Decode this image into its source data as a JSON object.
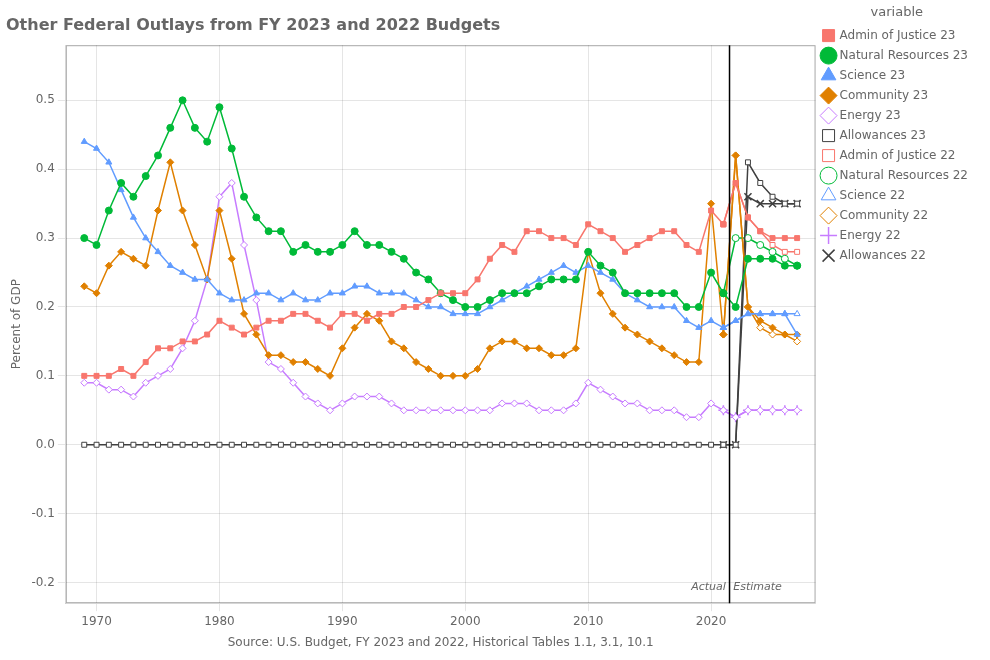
{
  "chart_data": {
    "type": "line",
    "title": "Other Federal Outlays from FY 2023 and 2022 Budgets",
    "xlabel": "Source: U.S. Budget, FY 2023 and 2022, Historical Tables 1.1, 3.1, 10.1",
    "ylabel": "Percent of GDP",
    "xlim": [
      1967.5,
      2028.5
    ],
    "ylim": [
      -0.23,
      0.58
    ],
    "xticks": [
      1970,
      1980,
      1990,
      2000,
      2010,
      2020
    ],
    "yticks": [
      -0.2,
      -0.1,
      {
        "value": 0,
        "label": "0.0"
      },
      0.1,
      0.2,
      0.3,
      0.4,
      0.5
    ],
    "grid": true,
    "legend": "right",
    "legend_title": "variable",
    "line_style": "solid",
    "vlines": [
      {
        "x": 2021.5
      }
    ],
    "annotations": [
      {
        "text": "Actual",
        "x": 2021.2,
        "y": -0.215
      },
      {
        "text": "Estimate",
        "x": 2021.8,
        "y": -0.215
      }
    ],
    "series": [
      {
        "name": "Admin of Justice 23",
        "color": "#F8766D",
        "marker": "square",
        "x": [
          1969,
          1970,
          1971,
          1972,
          1973,
          1974,
          1975,
          1976,
          1977,
          1978,
          1979,
          1980,
          1981,
          1982,
          1983,
          1984,
          1985,
          1986,
          1987,
          1988,
          1989,
          1990,
          1991,
          1992,
          1993,
          1994,
          1995,
          1996,
          1997,
          1998,
          1999,
          2000,
          2001,
          2002,
          2003,
          2004,
          2005,
          2006,
          2007,
          2008,
          2009,
          2010,
          2011,
          2012,
          2013,
          2014,
          2015,
          2016,
          2017,
          2018,
          2019,
          2020,
          2021,
          2021,
          2022,
          2023,
          2024,
          2025,
          2026,
          2027
        ],
        "values": [
          0.1,
          0.1,
          0.1,
          0.11,
          0.1,
          0.12,
          0.14,
          0.14,
          0.15,
          0.15,
          0.16,
          0.18,
          0.17,
          0.16,
          0.17,
          0.18,
          0.18,
          0.19,
          0.19,
          0.18,
          0.17,
          0.19,
          0.19,
          0.18,
          0.19,
          0.19,
          0.2,
          0.2,
          0.21,
          0.22,
          0.22,
          0.22,
          0.24,
          0.27,
          0.29,
          0.28,
          0.31,
          0.31,
          0.3,
          0.3,
          0.29,
          0.32,
          0.31,
          0.3,
          0.28,
          0.29,
          0.3,
          0.31,
          0.31,
          0.29,
          0.28,
          0.34,
          0.32,
          0.32,
          0.38,
          0.33,
          0.31,
          0.3,
          0.3,
          0.3
        ]
      },
      {
        "name": "Natural Resources 23",
        "color": "#00BA38",
        "marker": "circle",
        "x": [
          1969,
          1970,
          1971,
          1972,
          1973,
          1974,
          1975,
          1976,
          1977,
          1978,
          1979,
          1980,
          1981,
          1982,
          1983,
          1984,
          1985,
          1986,
          1987,
          1988,
          1989,
          1990,
          1991,
          1992,
          1993,
          1994,
          1995,
          1996,
          1997,
          1998,
          1999,
          2000,
          2001,
          2002,
          2003,
          2004,
          2005,
          2006,
          2007,
          2008,
          2009,
          2010,
          2011,
          2012,
          2013,
          2014,
          2015,
          2016,
          2017,
          2018,
          2019,
          2020,
          2021,
          2021,
          2022,
          2023,
          2024,
          2025,
          2026,
          2027
        ],
        "values": [
          0.3,
          0.29,
          0.34,
          0.38,
          0.36,
          0.39,
          0.42,
          0.46,
          0.5,
          0.46,
          0.44,
          0.49,
          0.43,
          0.36,
          0.33,
          0.31,
          0.31,
          0.28,
          0.29,
          0.28,
          0.28,
          0.29,
          0.31,
          0.29,
          0.29,
          0.28,
          0.27,
          0.25,
          0.24,
          0.22,
          0.21,
          0.2,
          0.2,
          0.21,
          0.22,
          0.22,
          0.22,
          0.23,
          0.24,
          0.24,
          0.24,
          0.28,
          0.26,
          0.25,
          0.22,
          0.22,
          0.22,
          0.22,
          0.22,
          0.2,
          0.2,
          0.25,
          0.22,
          0.22,
          0.2,
          0.27,
          0.27,
          0.27,
          0.26,
          0.26
        ]
      },
      {
        "name": "Science 23",
        "color": "#619CFF",
        "marker": "triangle",
        "x": [
          1969,
          1970,
          1971,
          1972,
          1973,
          1974,
          1975,
          1976,
          1977,
          1978,
          1979,
          1980,
          1981,
          1982,
          1983,
          1984,
          1985,
          1986,
          1987,
          1988,
          1989,
          1990,
          1991,
          1992,
          1993,
          1994,
          1995,
          1996,
          1997,
          1998,
          1999,
          2000,
          2001,
          2002,
          2003,
          2004,
          2005,
          2006,
          2007,
          2008,
          2009,
          2010,
          2011,
          2012,
          2013,
          2014,
          2015,
          2016,
          2017,
          2018,
          2019,
          2020,
          2021,
          2021,
          2022,
          2023,
          2024,
          2025,
          2026,
          2027
        ],
        "values": [
          0.44,
          0.43,
          0.41,
          0.37,
          0.33,
          0.3,
          0.28,
          0.26,
          0.25,
          0.24,
          0.24,
          0.22,
          0.21,
          0.21,
          0.22,
          0.22,
          0.21,
          0.22,
          0.21,
          0.21,
          0.22,
          0.22,
          0.23,
          0.23,
          0.22,
          0.22,
          0.22,
          0.21,
          0.2,
          0.2,
          0.19,
          0.19,
          0.19,
          0.2,
          0.21,
          0.22,
          0.23,
          0.24,
          0.25,
          0.26,
          0.25,
          0.26,
          0.25,
          0.24,
          0.22,
          0.21,
          0.2,
          0.2,
          0.2,
          0.18,
          0.17,
          0.18,
          0.17,
          0.17,
          0.18,
          0.19,
          0.19,
          0.19,
          0.19,
          0.16
        ]
      },
      {
        "name": "Community 23",
        "color": "#E08000",
        "marker": "diamond",
        "x": [
          1969,
          1970,
          1971,
          1972,
          1973,
          1974,
          1975,
          1976,
          1977,
          1978,
          1979,
          1980,
          1981,
          1982,
          1983,
          1984,
          1985,
          1986,
          1987,
          1988,
          1989,
          1990,
          1991,
          1992,
          1993,
          1994,
          1995,
          1996,
          1997,
          1998,
          1999,
          2000,
          2001,
          2002,
          2003,
          2004,
          2005,
          2006,
          2007,
          2008,
          2009,
          2010,
          2011,
          2012,
          2013,
          2014,
          2015,
          2016,
          2017,
          2018,
          2019,
          2020,
          2021,
          2021,
          2022,
          2023,
          2024,
          2025,
          2026,
          2027
        ],
        "values": [
          0.23,
          0.22,
          0.26,
          0.28,
          0.27,
          0.26,
          0.34,
          0.41,
          0.34,
          0.29,
          0.24,
          0.34,
          0.27,
          0.19,
          0.16,
          0.13,
          0.13,
          0.12,
          0.12,
          0.11,
          0.1,
          0.14,
          0.17,
          0.19,
          0.18,
          0.15,
          0.14,
          0.12,
          0.11,
          0.1,
          0.1,
          0.1,
          0.11,
          0.14,
          0.15,
          0.15,
          0.14,
          0.14,
          0.13,
          0.13,
          0.14,
          0.28,
          0.22,
          0.19,
          0.17,
          0.16,
          0.15,
          0.14,
          0.13,
          0.12,
          0.12,
          0.35,
          0.16,
          0.16,
          0.42,
          0.2,
          0.18,
          0.17,
          0.16,
          0.16
        ]
      },
      {
        "name": "Energy 23",
        "color": "#C77CFF",
        "marker": "diamond_open",
        "x": [
          1969,
          1970,
          1971,
          1972,
          1973,
          1974,
          1975,
          1976,
          1977,
          1978,
          1979,
          1980,
          1981,
          1982,
          1983,
          1984,
          1985,
          1986,
          1987,
          1988,
          1989,
          1990,
          1991,
          1992,
          1993,
          1994,
          1995,
          1996,
          1997,
          1998,
          1999,
          2000,
          2001,
          2002,
          2003,
          2004,
          2005,
          2006,
          2007,
          2008,
          2009,
          2010,
          2011,
          2012,
          2013,
          2014,
          2015,
          2016,
          2017,
          2018,
          2019,
          2020,
          2021,
          2021,
          2022,
          2023,
          2024,
          2025,
          2026,
          2027
        ],
        "values": [
          0.09,
          0.09,
          0.08,
          0.08,
          0.07,
          0.09,
          0.1,
          0.11,
          0.14,
          0.18,
          0.24,
          0.36,
          0.38,
          0.29,
          0.21,
          0.12,
          0.11,
          0.09,
          0.07,
          0.06,
          0.05,
          0.06,
          0.07,
          0.07,
          0.07,
          0.06,
          0.05,
          0.05,
          0.05,
          0.05,
          0.05,
          0.05,
          0.05,
          0.05,
          0.06,
          0.06,
          0.06,
          0.05,
          0.05,
          0.05,
          0.06,
          0.09,
          0.08,
          0.07,
          0.06,
          0.06,
          0.05,
          0.05,
          0.05,
          0.04,
          0.04,
          0.06,
          0.05,
          0.05,
          0.04,
          0.05,
          0.05,
          0.05,
          0.05,
          0.05
        ]
      },
      {
        "name": "Allowances 23",
        "color": "#404040",
        "marker": "square_open",
        "x": [
          1969,
          1970,
          1971,
          1972,
          1973,
          1974,
          1975,
          1976,
          1977,
          1978,
          1979,
          1980,
          1981,
          1982,
          1983,
          1984,
          1985,
          1986,
          1987,
          1988,
          1989,
          1990,
          1991,
          1992,
          1993,
          1994,
          1995,
          1996,
          1997,
          1998,
          1999,
          2000,
          2001,
          2002,
          2003,
          2004,
          2005,
          2006,
          2007,
          2008,
          2009,
          2010,
          2011,
          2012,
          2013,
          2014,
          2015,
          2016,
          2017,
          2018,
          2019,
          2020,
          2021,
          2021,
          2022,
          2023,
          2024,
          2025,
          2026,
          2027
        ],
        "values": [
          0.0,
          0.0,
          0.0,
          0.0,
          0.0,
          0.0,
          0.0,
          0.0,
          0.0,
          0.0,
          0.0,
          0.0,
          0.0,
          0.0,
          0.0,
          0.0,
          0.0,
          0.0,
          0.0,
          0.0,
          0.0,
          0.0,
          0.0,
          0.0,
          0.0,
          0.0,
          0.0,
          0.0,
          0.0,
          0.0,
          0.0,
          0.0,
          0.0,
          0.0,
          0.0,
          0.0,
          0.0,
          0.0,
          0.0,
          0.0,
          0.0,
          0.0,
          0.0,
          0.0,
          0.0,
          0.0,
          0.0,
          0.0,
          0.0,
          0.0,
          0.0,
          0.0,
          0.0,
          0.0,
          0.0,
          0.41,
          0.38,
          0.36,
          0.35,
          0.35
        ]
      },
      {
        "name": "Admin of Justice 22",
        "color": "#F8766D",
        "marker": "square_open",
        "x": [
          2021,
          2022,
          2023,
          2024,
          2025,
          2026,
          2027
        ],
        "values": [
          0.32,
          0.38,
          0.33,
          0.31,
          0.29,
          0.28,
          0.28
        ]
      },
      {
        "name": "Natural Resources 22",
        "color": "#00BA38",
        "marker": "circle_open",
        "x": [
          2021,
          2022,
          2023,
          2024,
          2025,
          2026,
          2027
        ],
        "values": [
          0.22,
          0.3,
          0.3,
          0.29,
          0.28,
          0.27,
          0.26
        ]
      },
      {
        "name": "Science 22",
        "color": "#619CFF",
        "marker": "triangle_open",
        "x": [
          2021,
          2022,
          2023,
          2024,
          2025,
          2026,
          2027
        ],
        "values": [
          0.17,
          0.18,
          0.19,
          0.19,
          0.19,
          0.19,
          0.19
        ]
      },
      {
        "name": "Community 22",
        "color": "#E08000",
        "marker": "diamond_open",
        "x": [
          2021,
          2022,
          2023,
          2024,
          2025,
          2026,
          2027
        ],
        "values": [
          0.16,
          0.42,
          0.2,
          0.17,
          0.16,
          0.16,
          0.15
        ]
      },
      {
        "name": "Energy 22",
        "color": "#C77CFF",
        "marker": "plus",
        "x": [
          2021,
          2022,
          2023,
          2024,
          2025,
          2026,
          2027
        ],
        "values": [
          0.05,
          0.04,
          0.05,
          0.05,
          0.05,
          0.05,
          0.05
        ]
      },
      {
        "name": "Allowances 22",
        "color": "#404040",
        "marker": "x",
        "x": [
          2021,
          2022,
          2023,
          2024,
          2025,
          2026,
          2027
        ],
        "values": [
          0.0,
          0.0,
          0.36,
          0.35,
          0.35,
          0.35,
          0.35
        ]
      }
    ]
  }
}
